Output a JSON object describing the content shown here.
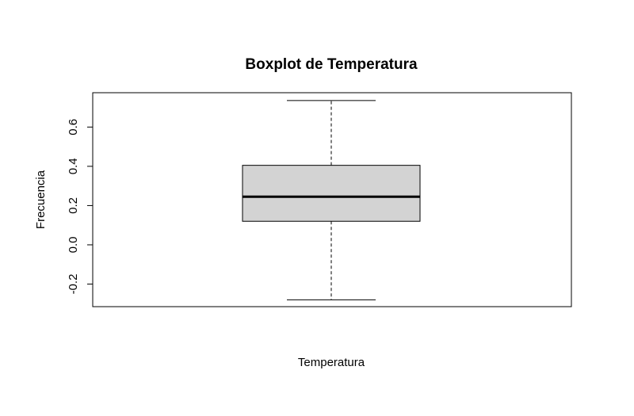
{
  "chart_data": {
    "type": "box",
    "title": "Boxplot de Temperatura",
    "xlabel": "Temperatura",
    "ylabel": "Frecuencia",
    "ylim": [
      -0.315,
      0.775
    ],
    "yticks": [
      -0.2,
      0.0,
      0.2,
      0.4,
      0.6
    ],
    "ytick_labels": [
      "-0.2",
      "0.0",
      "0.2",
      "0.4",
      "0.6"
    ],
    "grid": false,
    "box": {
      "whisker_low": -0.28,
      "q1": 0.12,
      "median": 0.245,
      "q3": 0.405,
      "whisker_high": 0.735
    },
    "colors": {
      "box_fill": "#d3d3d3",
      "stroke": "#000000"
    }
  }
}
